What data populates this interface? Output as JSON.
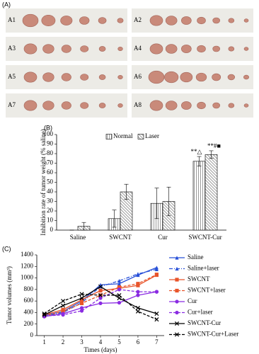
{
  "photo_panel": {
    "panel_label": "(A)",
    "labels": [
      "A1",
      "A2",
      "A3",
      "A4",
      "A5",
      "A6",
      "A7",
      "A8"
    ]
  },
  "chart_data": [
    {
      "type": "bar",
      "panel_label": "(B)",
      "y_label": "Inhibition rate of tumor weight (% saline)",
      "categories": [
        "Saline",
        "SWCNT",
        "Cur",
        "SWCNT-Cur"
      ],
      "series": [
        {
          "name": "Normal",
          "color": "#000000",
          "hatch": "vertical",
          "values": [
            0,
            12,
            28,
            72
          ],
          "errors": [
            0,
            9,
            16,
            5
          ],
          "annotations": [
            null,
            null,
            null,
            "**△"
          ]
        },
        {
          "name": "Laser",
          "color": "#000000",
          "hatch": "diagonal",
          "values": [
            4,
            40,
            30,
            79
          ],
          "errors": [
            4,
            8,
            15,
            4
          ],
          "annotations": [
            null,
            null,
            null,
            "**#■"
          ]
        }
      ],
      "ylim": [
        0,
        100
      ],
      "yticks": [
        0,
        10,
        20,
        30,
        40,
        50,
        60,
        70,
        80,
        90,
        100
      ],
      "legend": "top"
    },
    {
      "type": "line",
      "panel_label": "(C)",
      "x_label": "Times (days)",
      "y_label": "Tumor volumes (mm³)",
      "x": [
        1,
        2,
        3,
        4,
        5,
        6,
        7
      ],
      "series": [
        {
          "name": "Saline",
          "color": "#2850d8",
          "dash": "solid",
          "marker": "triangle",
          "values": [
            350,
            420,
            600,
            880,
            900,
            1050,
            1180
          ]
        },
        {
          "name": "Saline+laser",
          "color": "#2850d8",
          "dash": "dashdot",
          "marker": "triangle",
          "values": [
            340,
            400,
            570,
            850,
            950,
            1070,
            1150
          ]
        },
        {
          "name": "SWCNT",
          "color": "#e8542a",
          "dash": "solid",
          "marker": "square",
          "values": [
            360,
            450,
            620,
            780,
            820,
            870,
            1050
          ]
        },
        {
          "name": "SWCNT+laser",
          "color": "#e8542a",
          "dash": "dashed",
          "marker": "square",
          "values": [
            340,
            420,
            560,
            700,
            840,
            900,
            1060
          ]
        },
        {
          "name": "Cur",
          "color": "#8a2be2",
          "dash": "solid",
          "marker": "circle",
          "values": [
            330,
            380,
            480,
            560,
            570,
            700,
            760
          ]
        },
        {
          "name": "Cur+laser",
          "color": "#8a2be2",
          "dash": "dashed",
          "marker": "circle",
          "values": [
            340,
            360,
            430,
            650,
            800,
            760,
            760
          ]
        },
        {
          "name": "SWCNT-Cur",
          "color": "#000000",
          "dash": "solid",
          "marker": "x",
          "values": [
            360,
            520,
            650,
            850,
            650,
            480,
            380
          ]
        },
        {
          "name": "SWCNT-Cur+Laser",
          "color": "#000000",
          "dash": "dashed",
          "marker": "x",
          "values": [
            380,
            600,
            720,
            700,
            700,
            420,
            280
          ]
        }
      ],
      "xlim": [
        0.6,
        7.4
      ],
      "xticks": [
        1,
        2,
        3,
        4,
        5,
        6,
        7
      ],
      "ylim": [
        0,
        1400
      ],
      "yticks": [
        0,
        200,
        400,
        600,
        800,
        1000,
        1200,
        1400
      ],
      "legend": "right"
    }
  ]
}
